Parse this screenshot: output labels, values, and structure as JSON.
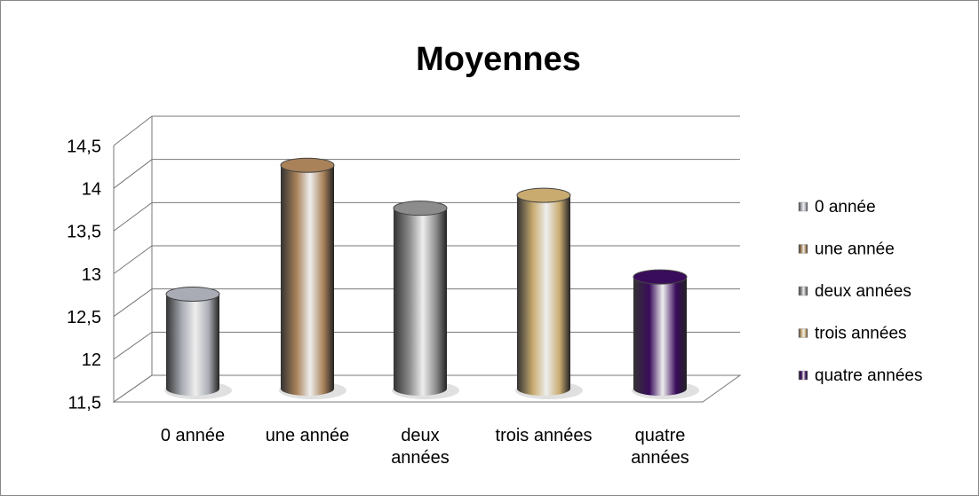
{
  "chart_data": {
    "type": "bar",
    "title": "Moyennes",
    "categories": [
      "0 année",
      "une année",
      "deux années",
      "trois années",
      "quatre années"
    ],
    "values": [
      12.6,
      14.1,
      13.6,
      13.75,
      12.8
    ],
    "colors": [
      "#a9acb4",
      "#a9825a",
      "#8c8c8c",
      "#c9ab70",
      "#3a0c5c"
    ],
    "ylim": [
      11.5,
      14.5
    ],
    "yticks": [
      {
        "value": 11.5,
        "label": "11,5"
      },
      12,
      {
        "value": 12.5,
        "label": "12,5"
      },
      13,
      {
        "value": 13.5,
        "label": "13,5"
      },
      14,
      {
        "value": 14.5,
        "label": "14,5"
      }
    ],
    "grid": true
  }
}
